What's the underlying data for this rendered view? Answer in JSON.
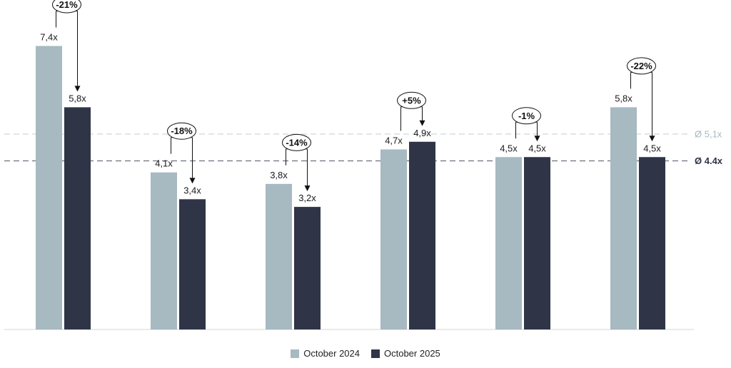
{
  "chart_data": {
    "type": "bar",
    "categories": [
      "",
      "",
      "",
      "",
      "",
      ""
    ],
    "series": [
      {
        "name": "October 2024",
        "color": "#a7b9c1",
        "values": [
          7.4,
          4.1,
          3.8,
          4.7,
          4.5,
          5.8
        ],
        "labels": [
          "7,4x",
          "4,1x",
          "3,8x",
          "4,7x",
          "4,5x",
          "5,8x"
        ]
      },
      {
        "name": "October 2025",
        "color": "#2f3547",
        "values": [
          5.8,
          3.4,
          3.2,
          4.9,
          4.5,
          4.5
        ],
        "labels": [
          "5,8x",
          "3,4x",
          "3,2x",
          "4,9x",
          "4,5x",
          "4,5x"
        ]
      }
    ],
    "changes": [
      "-21%",
      "-18%",
      "-14%",
      "+5%",
      "-1%",
      "-22%"
    ],
    "averages": [
      {
        "value": 5.1,
        "label": "Ø 5,1x",
        "color": "#a7b9c1",
        "bold": false
      },
      {
        "value": 4.4,
        "label": "Ø 4.4x",
        "color": "#2f3547",
        "bold": true
      }
    ],
    "ylim": [
      0,
      8.6
    ],
    "grid": false,
    "legend_position": "bottom-center"
  },
  "legend": {
    "items": [
      {
        "label": "October 2024",
        "color": "#a7b9c1"
      },
      {
        "label": "October 2025",
        "color": "#2f3547"
      }
    ]
  }
}
